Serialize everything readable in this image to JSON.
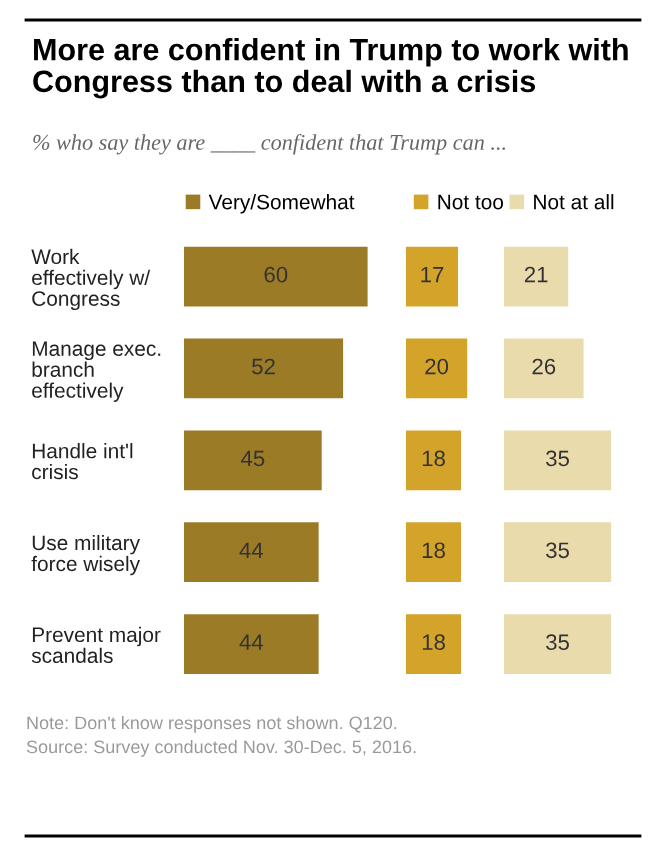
{
  "chart_data": [
    {
      "type": "bar",
      "orientation": "horizontal",
      "title": "More are confident in Trump to work with Congress than to deal with a crisis",
      "subtitle": "% who say they are ____ confident that Trump can ...",
      "categories": [
        "Work\neffectively w/\nCongress",
        "Manage exec.\nbranch\neffectively",
        "Handle int'l\ncrisis",
        "Use military\nforce wisely",
        "Prevent major\nscandals"
      ],
      "series": [
        {
          "name": "Very/Somewhat",
          "color": "#9c7b26",
          "values": [
            60,
            52,
            45,
            44,
            44
          ]
        }
      ],
      "data_labels": true,
      "legend": "top",
      "tick_labels": "y",
      "annotations": [
        "Note: Don't know responses not shown. Q120.",
        "Source: Survey conducted Nov. 30-Dec. 5, 2016."
      ]
    },
    {
      "type": "bar",
      "orientation": "horizontal",
      "categories": [
        null,
        null,
        null,
        null,
        null
      ],
      "series": [
        {
          "name": "Not too",
          "color": "#d4a32a",
          "values": [
            17,
            20,
            18,
            18,
            18
          ]
        }
      ],
      "data_labels": true,
      "legend": "top",
      "tick_labels": false
    },
    {
      "type": "bar",
      "orientation": "horizontal",
      "categories": [
        null,
        null,
        null,
        null,
        null
      ],
      "series": [
        {
          "name": "Not at all",
          "color": "#eadbac",
          "values": [
            21,
            26,
            35,
            35,
            35
          ]
        }
      ],
      "data_labels": true,
      "legend": "top",
      "tick_labels": false
    }
  ]
}
